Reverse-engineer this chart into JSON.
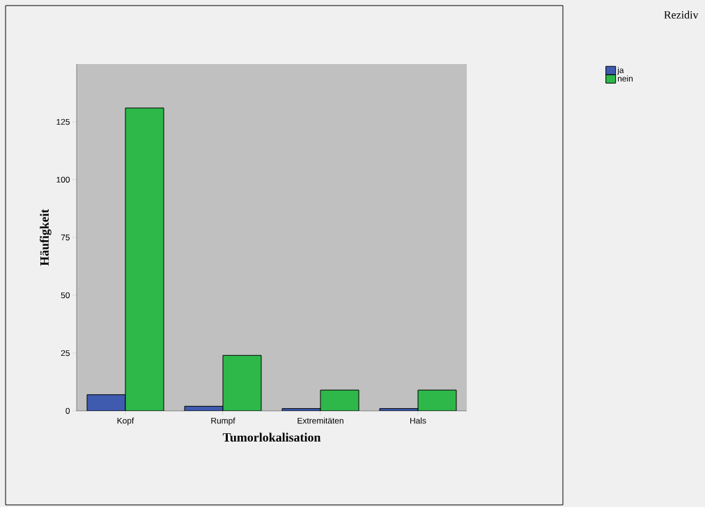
{
  "chart_data": {
    "type": "bar",
    "xlabel": "Tumorlokalisation",
    "ylabel": "Häufigkeit",
    "legend_title": "Rezidiv",
    "categories": [
      "Kopf",
      "Rumpf",
      "Extremitäten",
      "Hals"
    ],
    "series": [
      {
        "name": "ja",
        "color": "#3f5bb0",
        "values": [
          7,
          2,
          1,
          1
        ]
      },
      {
        "name": "nein",
        "color": "#2eb84a",
        "values": [
          131,
          24,
          9,
          9
        ]
      }
    ],
    "ylim": [
      0,
      150
    ],
    "yticks": [
      0,
      25,
      50,
      75,
      100,
      125
    ],
    "grid": false,
    "legend": "top right"
  }
}
